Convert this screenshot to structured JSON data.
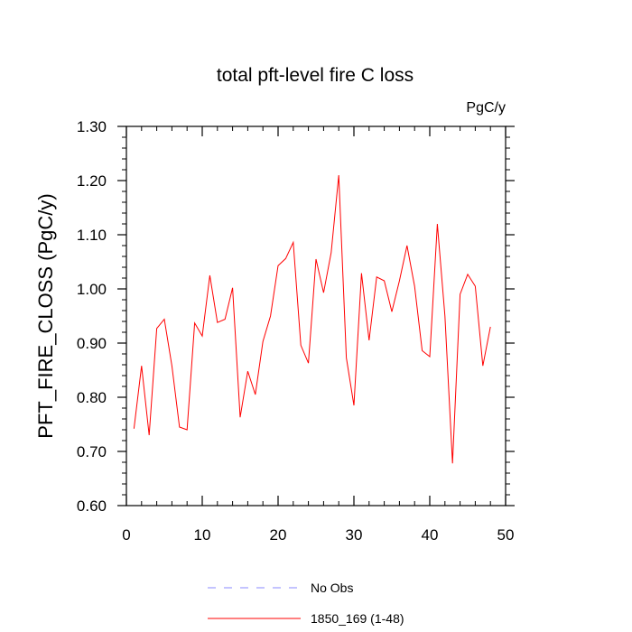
{
  "chart_data": {
    "type": "line",
    "title": "total pft-level fire C loss",
    "units_label": "PgC/y",
    "ylabel": "PFT_FIRE_CLOSS  (PgC/y)",
    "xlabel": "",
    "xlim": [
      0,
      50
    ],
    "ylim": [
      0.6,
      1.3
    ],
    "x_ticks": [
      0,
      10,
      20,
      30,
      40,
      50
    ],
    "y_ticks": [
      0.6,
      0.7,
      0.8,
      0.9,
      1.0,
      1.1,
      1.2,
      1.3
    ],
    "y_tick_labels": [
      "0.60",
      "0.70",
      "0.80",
      "0.90",
      "1.00",
      "1.10",
      "1.20",
      "1.30"
    ],
    "legend": [
      {
        "label": "No Obs",
        "color": "#8888ff",
        "dash": true
      },
      {
        "label": "1850_169 (1-48)",
        "color": "#ff0000",
        "dash": false
      }
    ],
    "series": [
      {
        "name": "1850_169 (1-48)",
        "color": "#ff0000",
        "x": [
          1,
          2,
          3,
          4,
          5,
          6,
          7,
          8,
          9,
          10,
          11,
          12,
          13,
          14,
          15,
          16,
          17,
          18,
          19,
          20,
          21,
          22,
          23,
          24,
          25,
          26,
          27,
          28,
          29,
          30,
          31,
          32,
          33,
          34,
          35,
          36,
          37,
          38,
          39,
          40,
          41,
          42,
          43,
          44,
          45,
          46,
          47,
          48
        ],
        "values": [
          0.742,
          0.858,
          0.73,
          0.927,
          0.944,
          0.858,
          0.745,
          0.74,
          0.937,
          0.913,
          1.025,
          0.938,
          0.944,
          1.002,
          0.763,
          0.848,
          0.805,
          0.903,
          0.95,
          1.043,
          1.056,
          1.086,
          0.896,
          0.863,
          1.055,
          0.993,
          1.067,
          1.21,
          0.873,
          0.785,
          1.029,
          0.905,
          1.022,
          1.015,
          0.958,
          1.015,
          1.08,
          1.005,
          0.886,
          0.875,
          1.12,
          0.95,
          0.678,
          0.99,
          1.027,
          1.005,
          0.858,
          0.93
        ]
      }
    ]
  }
}
